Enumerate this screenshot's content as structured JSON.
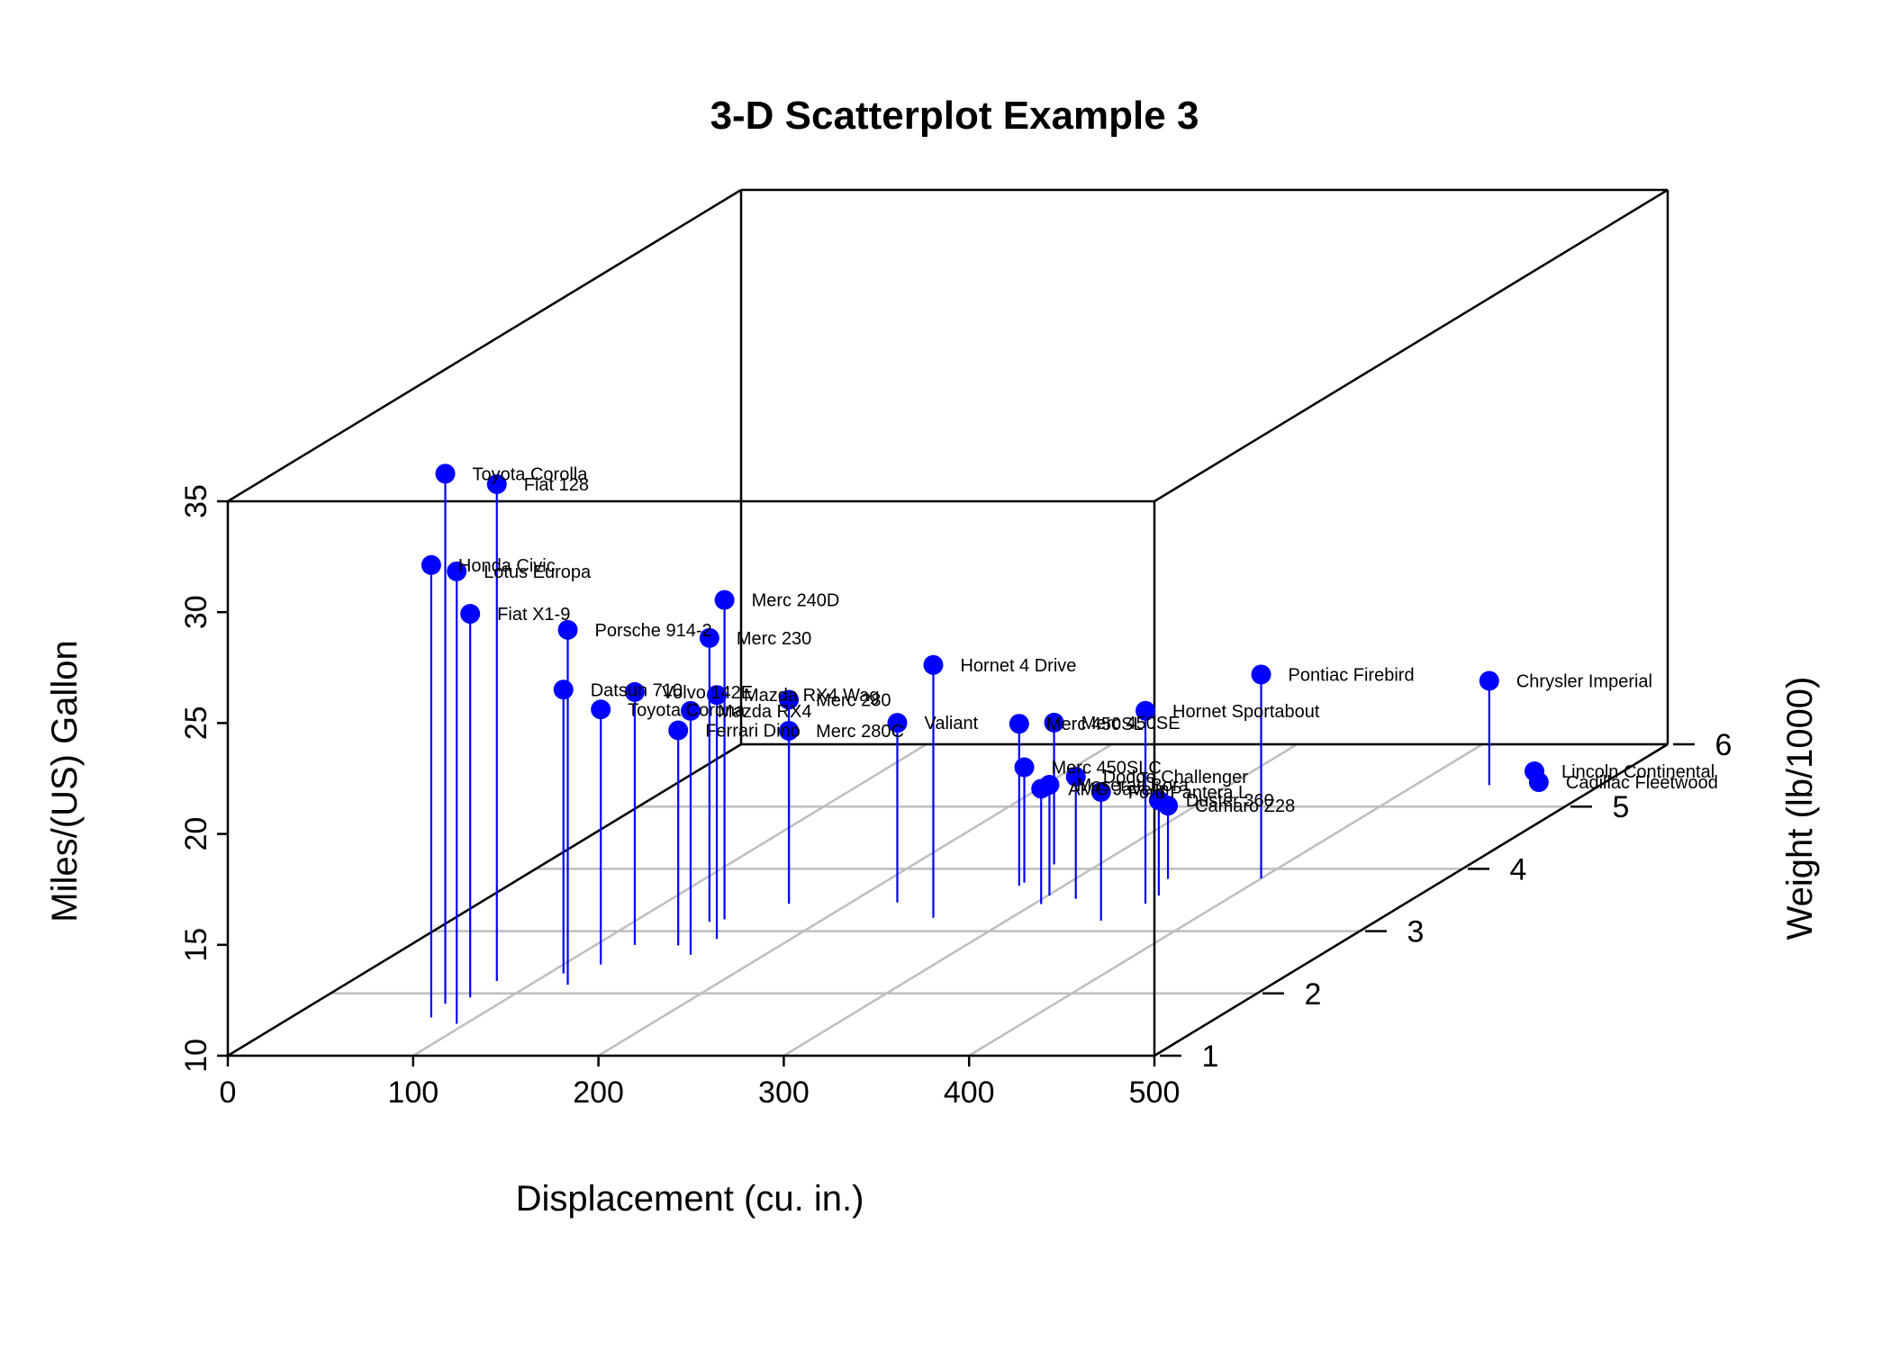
{
  "chart_data": {
    "type": "scatter",
    "subtype": "3d-scatter-with-drop-lines",
    "title": "3-D Scatterplot Example 3",
    "xlabel": "Displacement (cu. in.)",
    "ylabel": "Weight (lb/1000)",
    "zlabel": "Miles/(US) Gallon",
    "xlim": [
      0,
      500
    ],
    "ylim": [
      1,
      6
    ],
    "zlim": [
      10,
      35
    ],
    "x_ticks": [
      "0",
      "100",
      "200",
      "300",
      "400",
      "500"
    ],
    "y_ticks": [
      "1",
      "2",
      "3",
      "4",
      "5",
      "6"
    ],
    "z_ticks": [
      "10",
      "15",
      "20",
      "25",
      "30",
      "35"
    ],
    "grid": "on the floor (x-y plane)",
    "point_color": "#0000ff",
    "drop_line_color": "#0000ff",
    "grid_color": "#bebebe",
    "points": [
      {
        "label": "Mazda RX4",
        "disp": 160,
        "wt": 2.62,
        "mpg": 21.0
      },
      {
        "label": "Mazda RX4 Wag",
        "disp": 160,
        "wt": 2.875,
        "mpg": 21.0
      },
      {
        "label": "Datsun 710",
        "disp": 108,
        "wt": 2.32,
        "mpg": 22.8
      },
      {
        "label": "Hornet 4 Drive",
        "disp": 258,
        "wt": 3.215,
        "mpg": 21.4
      },
      {
        "label": "Hornet Sportabout",
        "disp": 360,
        "wt": 3.44,
        "mpg": 18.7
      },
      {
        "label": "Valiant",
        "disp": 225,
        "wt": 3.46,
        "mpg": 18.1
      },
      {
        "label": "Duster 360",
        "disp": 360,
        "wt": 3.57,
        "mpg": 14.3
      },
      {
        "label": "Merc 240D",
        "disp": 146.7,
        "wt": 3.19,
        "mpg": 24.4
      },
      {
        "label": "Merc 230",
        "disp": 140.8,
        "wt": 3.15,
        "mpg": 22.8
      },
      {
        "label": "Merc 280",
        "disp": 167.6,
        "wt": 3.44,
        "mpg": 19.2
      },
      {
        "label": "Merc 280C",
        "disp": 167.6,
        "wt": 3.44,
        "mpg": 17.8
      },
      {
        "label": "Merc 450SE",
        "disp": 275.8,
        "wt": 4.07,
        "mpg": 16.4
      },
      {
        "label": "Merc 450SL",
        "disp": 275.8,
        "wt": 3.73,
        "mpg": 17.3
      },
      {
        "label": "Merc 450SLC",
        "disp": 275.8,
        "wt": 3.78,
        "mpg": 15.2
      },
      {
        "label": "Cadillac Fleetwood",
        "disp": 472,
        "wt": 5.25,
        "mpg": 10.4
      },
      {
        "label": "Lincoln Continental",
        "disp": 460,
        "wt": 5.424,
        "mpg": 10.4
      },
      {
        "label": "Chrysler Imperial",
        "disp": 440,
        "wt": 5.345,
        "mpg": 14.7
      },
      {
        "label": "Fiat 128",
        "disp": 78.7,
        "wt": 2.2,
        "mpg": 32.4
      },
      {
        "label": "Honda Civic",
        "disp": 75.7,
        "wt": 1.615,
        "mpg": 30.4
      },
      {
        "label": "Toyota Corolla",
        "disp": 71.1,
        "wt": 1.835,
        "mpg": 33.9
      },
      {
        "label": "Toyota Corona",
        "disp": 120.1,
        "wt": 2.465,
        "mpg": 21.5
      },
      {
        "label": "Dodge Challenger",
        "disp": 318,
        "wt": 3.52,
        "mpg": 15.5
      },
      {
        "label": "AMC Javelin",
        "disp": 304,
        "wt": 3.435,
        "mpg": 15.2
      },
      {
        "label": "Camaro Z28",
        "disp": 350,
        "wt": 3.84,
        "mpg": 13.3
      },
      {
        "label": "Pontiac Firebird",
        "disp": 400,
        "wt": 3.845,
        "mpg": 19.2
      },
      {
        "label": "Fiat X1-9",
        "disp": 79,
        "wt": 1.935,
        "mpg": 27.3
      },
      {
        "label": "Porsche 914-2",
        "disp": 120.3,
        "wt": 2.14,
        "mpg": 26.0
      },
      {
        "label": "Lotus Europa",
        "disp": 95.1,
        "wt": 1.513,
        "mpg": 30.4
      },
      {
        "label": "Ford Pantera L",
        "disp": 351,
        "wt": 3.17,
        "mpg": 15.8
      },
      {
        "label": "Ferrari Dino",
        "disp": 145,
        "wt": 2.77,
        "mpg": 19.7
      },
      {
        "label": "Maserati Bora",
        "disp": 301,
        "wt": 3.57,
        "mpg": 15.0
      },
      {
        "label": "Volvo 142E",
        "disp": 121,
        "wt": 2.78,
        "mpg": 21.4
      }
    ]
  }
}
